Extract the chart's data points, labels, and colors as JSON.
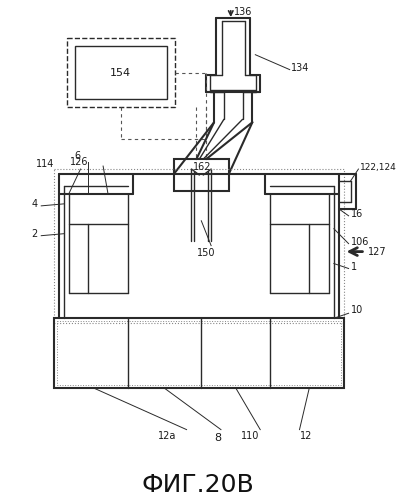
{
  "title": "ФИГ.20В",
  "title_fontsize": 18,
  "bg_color": "#ffffff",
  "line_color": "#2a2a2a"
}
